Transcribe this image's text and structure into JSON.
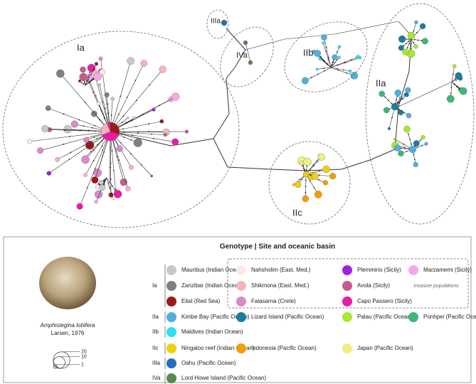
{
  "clusters": [
    {
      "label": "Ia"
    },
    {
      "label": "IIIa"
    },
    {
      "label": "IVa"
    },
    {
      "label": "IIb"
    },
    {
      "label": "IIa"
    },
    {
      "label": "IIc"
    }
  ],
  "legend": {
    "title": "Genotype | Site and oceanic basin",
    "invasive_note": "Invasive populations",
    "groups": [
      {
        "genotype": "Ia",
        "sites": [
          {
            "name": "Mauritius (Indian Ocean)",
            "color": "#c8c8c8"
          },
          {
            "name": "Zanzibar (Indian Ocean)",
            "color": "#7f7f7f"
          },
          {
            "name": "Eilat (Red Sea)",
            "color": "#9e1a1a"
          },
          {
            "name": "Nahsholim (East. Med.)",
            "color": "#fde8e8"
          },
          {
            "name": "Shikmona (East. Med.)",
            "color": "#f4b6bc"
          },
          {
            "name": "Falasarna (Crete)",
            "color": "#d98ac8"
          },
          {
            "name": "Plemmirio (Sicily)",
            "color": "#a020e0"
          },
          {
            "name": "Avola (Sicily)",
            "color": "#c85a8a"
          },
          {
            "name": "Capo Passero (Sicily)",
            "color": "#e81ca8"
          },
          {
            "name": "Marzamemi (Sicily)",
            "color": "#f5a8e8"
          }
        ]
      },
      {
        "genotype": "IIa",
        "sites": [
          {
            "name": "Kimbe Bay (Pacific Ocean)",
            "color": "#4fb0dc"
          },
          {
            "name": "Lizard Island (Pacific Ocean)",
            "color": "#1b7ea0"
          },
          {
            "name": "Palau (Pacific Ocean)",
            "color": "#a8e830"
          },
          {
            "name": "Ponhpei (Pacific Ocean)",
            "color": "#3cb878"
          }
        ]
      },
      {
        "genotype": "IIb",
        "sites": [
          {
            "name": "Maldives (Indian Ocean)",
            "color": "#30e0f0"
          }
        ]
      },
      {
        "genotype": "IIc",
        "sites": [
          {
            "name": "Ningaloo reef (Indian Ocean)",
            "color": "#f0d010"
          },
          {
            "name": "Indonesia (Pacific Ocean)",
            "color": "#f0a000"
          },
          {
            "name": "Japan (Pacific Ocean)",
            "color": "#f0f080"
          }
        ]
      },
      {
        "genotype": "IIIa",
        "sites": [
          {
            "name": "Oahu (Pacific Ocean)",
            "color": "#1f6fc0"
          }
        ]
      },
      {
        "genotype": "IVa",
        "sites": [
          {
            "name": "Lord Howe Island (Pacific Ocean)",
            "color": "#5a8a50"
          }
        ]
      }
    ]
  },
  "species": {
    "name": "Amphistegina lobifera",
    "author": "Larsen, 1976"
  },
  "scale": [
    20,
    10,
    1
  ]
}
